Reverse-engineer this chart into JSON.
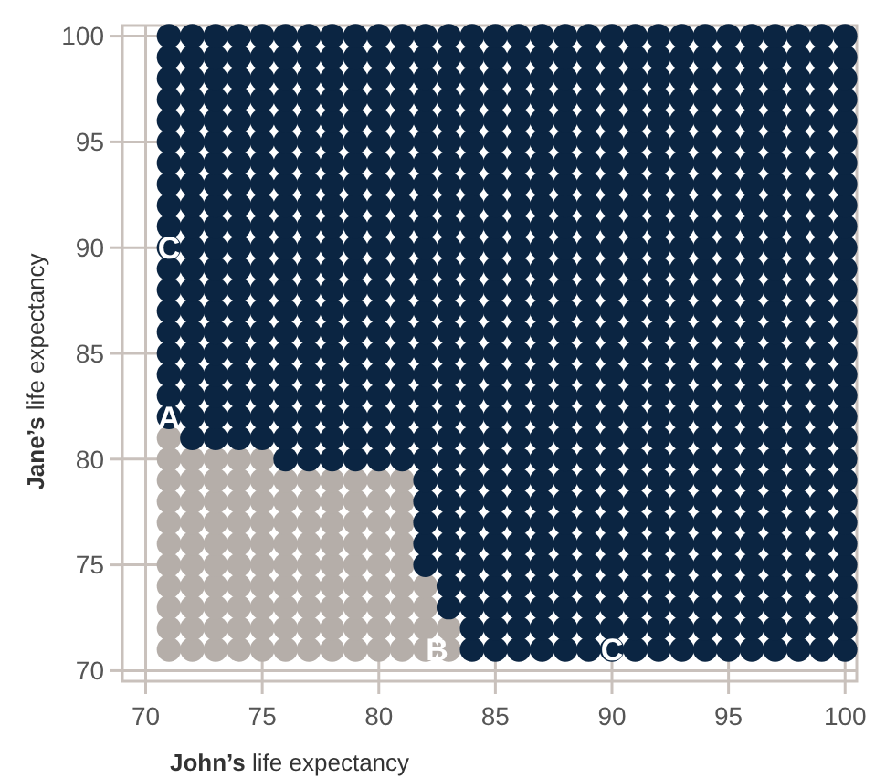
{
  "chart_data": {
    "type": "scatter",
    "xlabel": "John’s life expectancy",
    "ylabel": "Jane’s life expectancy",
    "xlim": [
      69,
      100.5
    ],
    "ylim": [
      69.5,
      100.5
    ],
    "xticks": [
      70,
      75,
      80,
      85,
      90,
      95,
      100
    ],
    "yticks": [
      70,
      75,
      80,
      85,
      90,
      95,
      100
    ],
    "grid": true,
    "marker": "circle",
    "annotations": [
      {
        "text": "A",
        "x": 71,
        "y": 82
      },
      {
        "text": "B",
        "x": 82.5,
        "y": 71
      },
      {
        "text": "C",
        "x": 71,
        "y": 90
      },
      {
        "text": "C",
        "x": 90,
        "y": 71
      }
    ],
    "series": [
      {
        "color": "#b5aea9",
        "x": [
          71,
          71,
          71,
          71,
          71,
          71,
          71,
          71,
          71,
          71,
          71,
          72,
          72,
          72,
          72,
          72,
          72,
          72,
          72,
          72,
          72,
          73,
          73,
          73,
          73,
          73,
          73,
          73,
          73,
          73,
          73,
          74,
          74,
          74,
          74,
          74,
          74,
          74,
          74,
          74,
          74,
          75,
          75,
          75,
          75,
          75,
          75,
          75,
          75,
          75,
          75,
          76,
          76,
          76,
          76,
          76,
          76,
          76,
          76,
          76,
          77,
          77,
          77,
          77,
          77,
          77,
          77,
          77,
          77,
          78,
          78,
          78,
          78,
          78,
          78,
          78,
          78,
          78,
          79,
          79,
          79,
          79,
          79,
          79,
          79,
          79,
          79,
          80,
          80,
          80,
          80,
          80,
          80,
          80,
          80,
          80,
          81,
          81,
          81,
          81,
          81,
          81,
          81,
          81,
          81,
          82,
          82,
          82,
          82,
          83,
          83
        ],
        "values": [
          71,
          72,
          73,
          74,
          75,
          76,
          77,
          78,
          79,
          80,
          81,
          71,
          72,
          73,
          74,
          75,
          76,
          77,
          78,
          79,
          80,
          71,
          72,
          73,
          74,
          75,
          76,
          77,
          78,
          79,
          80,
          71,
          72,
          73,
          74,
          75,
          76,
          77,
          78,
          79,
          80,
          71,
          72,
          73,
          74,
          75,
          76,
          77,
          78,
          79,
          80,
          71,
          72,
          73,
          74,
          75,
          76,
          77,
          78,
          79,
          71,
          72,
          73,
          74,
          75,
          76,
          77,
          78,
          79,
          71,
          72,
          73,
          74,
          75,
          76,
          77,
          78,
          79,
          71,
          72,
          73,
          74,
          75,
          76,
          77,
          78,
          79,
          71,
          72,
          73,
          74,
          75,
          76,
          77,
          78,
          79,
          71,
          72,
          73,
          74,
          75,
          76,
          77,
          78,
          79,
          71,
          72,
          73,
          74,
          71,
          72
        ]
      },
      {
        "color": "#0b2542",
        "x": [
          71,
          71,
          71,
          71,
          71,
          71,
          71,
          71,
          71,
          71,
          71,
          71,
          71,
          71,
          71,
          71,
          71,
          71,
          71,
          72,
          72,
          72,
          72,
          72,
          72,
          72,
          72,
          72,
          72,
          72,
          72,
          72,
          72,
          72,
          72,
          72,
          72,
          72,
          72,
          73,
          73,
          73,
          73,
          73,
          73,
          73,
          73,
          73,
          73,
          73,
          73,
          73,
          73,
          73,
          73,
          73,
          73,
          73,
          73,
          74,
          74,
          74,
          74,
          74,
          74,
          74,
          74,
          74,
          74,
          74,
          74,
          74,
          74,
          74,
          74,
          74,
          74,
          74,
          74,
          75,
          75,
          75,
          75,
          75,
          75,
          75,
          75,
          75,
          75,
          75,
          75,
          75,
          75,
          75,
          75,
          75,
          75,
          75,
          75,
          76,
          76,
          76,
          76,
          76,
          76,
          76,
          76,
          76,
          76,
          76,
          76,
          76,
          76,
          76,
          76,
          76,
          76,
          76,
          76,
          76,
          77,
          77,
          77,
          77,
          77,
          77,
          77,
          77,
          77,
          77,
          77,
          77,
          77,
          77,
          77,
          77,
          77,
          77,
          77,
          77,
          77,
          78,
          78,
          78,
          78,
          78,
          78,
          78,
          78,
          78,
          78,
          78,
          78,
          78,
          78,
          78,
          78,
          78,
          78,
          78,
          78,
          78,
          79,
          79,
          79,
          79,
          79,
          79,
          79,
          79,
          79,
          79,
          79,
          79,
          79,
          79,
          79,
          79,
          79,
          79,
          79,
          79,
          79,
          80,
          80,
          80,
          80,
          80,
          80,
          80,
          80,
          80,
          80,
          80,
          80,
          80,
          80,
          80,
          80,
          80,
          80,
          80,
          80,
          80,
          81,
          81,
          81,
          81,
          81,
          81,
          81,
          81,
          81,
          81,
          81,
          81,
          81,
          81,
          81,
          81,
          81,
          81,
          81,
          81,
          81,
          82,
          82,
          82,
          82,
          82,
          82,
          82,
          82,
          82,
          82,
          82,
          82,
          82,
          82,
          82,
          82,
          82,
          82,
          82,
          82,
          82,
          82,
          82,
          82,
          82,
          82,
          83,
          83,
          83,
          83,
          83,
          83,
          83,
          83,
          83,
          83,
          83,
          83,
          83,
          83,
          83,
          83,
          83,
          83,
          83,
          83,
          83,
          83,
          83,
          83,
          83,
          83,
          83,
          83,
          84,
          84,
          84,
          84,
          84,
          84,
          84,
          84,
          84,
          84,
          84,
          84,
          84,
          84,
          84,
          84,
          84,
          84,
          84,
          84,
          84,
          84,
          84,
          84,
          84,
          84,
          84,
          84,
          84,
          84,
          85,
          85,
          85,
          85,
          85,
          85,
          85,
          85,
          85,
          85,
          85,
          85,
          85,
          85,
          85,
          85,
          85,
          85,
          85,
          85,
          85,
          85,
          85,
          85,
          85,
          85,
          85,
          85,
          85,
          85,
          86,
          86,
          86,
          86,
          86,
          86,
          86,
          86,
          86,
          86,
          86,
          86,
          86,
          86,
          86,
          86,
          86,
          86,
          86,
          86,
          86,
          86,
          86,
          86,
          86,
          86,
          86,
          86,
          86,
          86,
          87,
          87,
          87,
          87,
          87,
          87,
          87,
          87,
          87,
          87,
          87,
          87,
          87,
          87,
          87,
          87,
          87,
          87,
          87,
          87,
          87,
          87,
          87,
          87,
          87,
          87,
          87,
          87,
          87,
          87,
          88,
          88,
          88,
          88,
          88,
          88,
          88,
          88,
          88,
          88,
          88,
          88,
          88,
          88,
          88,
          88,
          88,
          88,
          88,
          88,
          88,
          88,
          88,
          88,
          88,
          88,
          88,
          88,
          88,
          88,
          89,
          89,
          89,
          89,
          89,
          89,
          89,
          89,
          89,
          89,
          89,
          89,
          89,
          89,
          89,
          89,
          89,
          89,
          89,
          89,
          89,
          89,
          89,
          89,
          89,
          89,
          89,
          89,
          89,
          89,
          90,
          90,
          90,
          90,
          90,
          90,
          90,
          90,
          90,
          90,
          90,
          90,
          90,
          90,
          90,
          90,
          90,
          90,
          90,
          90,
          90,
          90,
          90,
          90,
          90,
          90,
          90,
          90,
          90,
          90,
          91,
          91,
          91,
          91,
          91,
          91,
          91,
          91,
          91,
          91,
          91,
          91,
          91,
          91,
          91,
          91,
          91,
          91,
          91,
          91,
          91,
          91,
          91,
          91,
          91,
          91,
          91,
          91,
          91,
          91,
          92,
          92,
          92,
          92,
          92,
          92,
          92,
          92,
          92,
          92,
          92,
          92,
          92,
          92,
          92,
          92,
          92,
          92,
          92,
          92,
          92,
          92,
          92,
          92,
          92,
          92,
          92,
          92,
          92,
          92,
          93,
          93,
          93,
          93,
          93,
          93,
          93,
          93,
          93,
          93,
          93,
          93,
          93,
          93,
          93,
          93,
          93,
          93,
          93,
          93,
          93,
          93,
          93,
          93,
          93,
          93,
          93,
          93,
          93,
          93,
          94,
          94,
          94,
          94,
          94,
          94,
          94,
          94,
          94,
          94,
          94,
          94,
          94,
          94,
          94,
          94,
          94,
          94,
          94,
          94,
          94,
          94,
          94,
          94,
          94,
          94,
          94,
          94,
          94,
          94,
          95,
          95,
          95,
          95,
          95,
          95,
          95,
          95,
          95,
          95,
          95,
          95,
          95,
          95,
          95,
          95,
          95,
          95,
          95,
          95,
          95,
          95,
          95,
          95,
          95,
          95,
          95,
          95,
          95,
          95,
          96,
          96,
          96,
          96,
          96,
          96,
          96,
          96,
          96,
          96,
          96,
          96,
          96,
          96,
          96,
          96,
          96,
          96,
          96,
          96,
          96,
          96,
          96,
          96,
          96,
          96,
          96,
          96,
          96,
          96,
          97,
          97,
          97,
          97,
          97,
          97,
          97,
          97,
          97,
          97,
          97,
          97,
          97,
          97,
          97,
          97,
          97,
          97,
          97,
          97,
          97,
          97,
          97,
          97,
          97,
          97,
          97,
          97,
          97,
          97,
          98,
          98,
          98,
          98,
          98,
          98,
          98,
          98,
          98,
          98,
          98,
          98,
          98,
          98,
          98,
          98,
          98,
          98,
          98,
          98,
          98,
          98,
          98,
          98,
          98,
          98,
          98,
          98,
          98,
          98,
          99,
          99,
          99,
          99,
          99,
          99,
          99,
          99,
          99,
          99,
          99,
          99,
          99,
          99,
          99,
          99,
          99,
          99,
          99,
          99,
          99,
          99,
          99,
          99,
          99,
          99,
          99,
          99,
          99,
          99,
          100,
          100,
          100,
          100,
          100,
          100,
          100,
          100,
          100,
          100,
          100,
          100,
          100,
          100,
          100,
          100,
          100,
          100,
          100,
          100,
          100,
          100,
          100,
          100,
          100,
          100,
          100,
          100,
          100,
          100
        ],
        "values": [
          82,
          83,
          84,
          85,
          86,
          87,
          88,
          89,
          90,
          91,
          92,
          93,
          94,
          95,
          96,
          97,
          98,
          99,
          100,
          81,
          82,
          83,
          84,
          85,
          86,
          87,
          88,
          89,
          90,
          91,
          92,
          93,
          94,
          95,
          96,
          97,
          98,
          99,
          100,
          81,
          82,
          83,
          84,
          85,
          86,
          87,
          88,
          89,
          90,
          91,
          92,
          93,
          94,
          95,
          96,
          97,
          98,
          99,
          100,
          81,
          82,
          83,
          84,
          85,
          86,
          87,
          88,
          89,
          90,
          91,
          92,
          93,
          94,
          95,
          96,
          97,
          98,
          99,
          100,
          81,
          82,
          83,
          84,
          85,
          86,
          87,
          88,
          89,
          90,
          91,
          92,
          93,
          94,
          95,
          96,
          97,
          98,
          99,
          100,
          80,
          81,
          82,
          83,
          84,
          85,
          86,
          87,
          88,
          89,
          90,
          91,
          92,
          93,
          94,
          95,
          96,
          97,
          98,
          99,
          100,
          80,
          81,
          82,
          83,
          84,
          85,
          86,
          87,
          88,
          89,
          90,
          91,
          92,
          93,
          94,
          95,
          96,
          97,
          98,
          99,
          100,
          80,
          81,
          82,
          83,
          84,
          85,
          86,
          87,
          88,
          89,
          90,
          91,
          92,
          93,
          94,
          95,
          96,
          97,
          98,
          99,
          100,
          80,
          81,
          82,
          83,
          84,
          85,
          86,
          87,
          88,
          89,
          90,
          91,
          92,
          93,
          94,
          95,
          96,
          97,
          98,
          99,
          100,
          80,
          81,
          82,
          83,
          84,
          85,
          86,
          87,
          88,
          89,
          90,
          91,
          92,
          93,
          94,
          95,
          96,
          97,
          98,
          99,
          100,
          80,
          81,
          82,
          83,
          84,
          85,
          86,
          87,
          88,
          89,
          90,
          91,
          92,
          93,
          94,
          95,
          96,
          97,
          98,
          99,
          100,
          75,
          76,
          77,
          78,
          79,
          80,
          81,
          82,
          83,
          84,
          85,
          86,
          87,
          88,
          89,
          90,
          91,
          92,
          93,
          94,
          95,
          96,
          97,
          98,
          99,
          100,
          73,
          74,
          75,
          76,
          77,
          78,
          79,
          80,
          81,
          82,
          83,
          84,
          85,
          86,
          87,
          88,
          89,
          90,
          91,
          92,
          93,
          94,
          95,
          96,
          97,
          98,
          99,
          100,
          71,
          72,
          73,
          74,
          75,
          76,
          77,
          78,
          79,
          80,
          81,
          82,
          83,
          84,
          85,
          86,
          87,
          88,
          89,
          90,
          91,
          92,
          93,
          94,
          95,
          96,
          97,
          98,
          99,
          100,
          71,
          72,
          73,
          74,
          75,
          76,
          77,
          78,
          79,
          80,
          81,
          82,
          83,
          84,
          85,
          86,
          87,
          88,
          89,
          90,
          91,
          92,
          93,
          94,
          95,
          96,
          97,
          98,
          99,
          100,
          71,
          72,
          73,
          74,
          75,
          76,
          77,
          78,
          79,
          80,
          81,
          82,
          83,
          84,
          85,
          86,
          87,
          88,
          89,
          90,
          91,
          92,
          93,
          94,
          95,
          96,
          97,
          98,
          99,
          100,
          71,
          72,
          73,
          74,
          75,
          76,
          77,
          78,
          79,
          80,
          81,
          82,
          83,
          84,
          85,
          86,
          87,
          88,
          89,
          90,
          91,
          92,
          93,
          94,
          95,
          96,
          97,
          98,
          99,
          100,
          71,
          72,
          73,
          74,
          75,
          76,
          77,
          78,
          79,
          80,
          81,
          82,
          83,
          84,
          85,
          86,
          87,
          88,
          89,
          90,
          91,
          92,
          93,
          94,
          95,
          96,
          97,
          98,
          99,
          100,
          71,
          72,
          73,
          74,
          75,
          76,
          77,
          78,
          79,
          80,
          81,
          82,
          83,
          84,
          85,
          86,
          87,
          88,
          89,
          90,
          91,
          92,
          93,
          94,
          95,
          96,
          97,
          98,
          99,
          100,
          71,
          72,
          73,
          74,
          75,
          76,
          77,
          78,
          79,
          80,
          81,
          82,
          83,
          84,
          85,
          86,
          87,
          88,
          89,
          90,
          91,
          92,
          93,
          94,
          95,
          96,
          97,
          98,
          99,
          100,
          71,
          72,
          73,
          74,
          75,
          76,
          77,
          78,
          79,
          80,
          81,
          82,
          83,
          84,
          85,
          86,
          87,
          88,
          89,
          90,
          91,
          92,
          93,
          94,
          95,
          96,
          97,
          98,
          99,
          100,
          71,
          72,
          73,
          74,
          75,
          76,
          77,
          78,
          79,
          80,
          81,
          82,
          83,
          84,
          85,
          86,
          87,
          88,
          89,
          90,
          91,
          92,
          93,
          94,
          95,
          96,
          97,
          98,
          99,
          100,
          71,
          72,
          73,
          74,
          75,
          76,
          77,
          78,
          79,
          80,
          81,
          82,
          83,
          84,
          85,
          86,
          87,
          88,
          89,
          90,
          91,
          92,
          93,
          94,
          95,
          96,
          97,
          98,
          99,
          100,
          71,
          72,
          73,
          74,
          75,
          76,
          77,
          78,
          79,
          80,
          81,
          82,
          83,
          84,
          85,
          86,
          87,
          88,
          89,
          90,
          91,
          92,
          93,
          94,
          95,
          96,
          97,
          98,
          99,
          100,
          71,
          72,
          73,
          74,
          75,
          76,
          77,
          78,
          79,
          80,
          81,
          82,
          83,
          84,
          85,
          86,
          87,
          88,
          89,
          90,
          91,
          92,
          93,
          94,
          95,
          96,
          97,
          98,
          99,
          100,
          71,
          72,
          73,
          74,
          75,
          76,
          77,
          78,
          79,
          80,
          81,
          82,
          83,
          84,
          85,
          86,
          87,
          88,
          89,
          90,
          91,
          92,
          93,
          94,
          95,
          96,
          97,
          98,
          99,
          100,
          71,
          72,
          73,
          74,
          75,
          76,
          77,
          78,
          79,
          80,
          81,
          82,
          83,
          84,
          85,
          86,
          87,
          88,
          89,
          90,
          91,
          92,
          93,
          94,
          95,
          96,
          97,
          98,
          99,
          100,
          71,
          72,
          73,
          74,
          75,
          76,
          77,
          78,
          79,
          80,
          81,
          82,
          83,
          84,
          85,
          86,
          87,
          88,
          89,
          90,
          91,
          92,
          93,
          94,
          95,
          96,
          97,
          98,
          99,
          100,
          71,
          72,
          73,
          74,
          75,
          76,
          77,
          78,
          79,
          80,
          81,
          82,
          83,
          84,
          85,
          86,
          87,
          88,
          89,
          90,
          91,
          92,
          93,
          94,
          95,
          96,
          97,
          98,
          99,
          100,
          71,
          72,
          73,
          74,
          75,
          76,
          77,
          78,
          79,
          80,
          81,
          82,
          83,
          84,
          85,
          86,
          87,
          88,
          89,
          90,
          91,
          92,
          93,
          94,
          95,
          96,
          97,
          98,
          99,
          100
        ]
      }
    ]
  }
}
